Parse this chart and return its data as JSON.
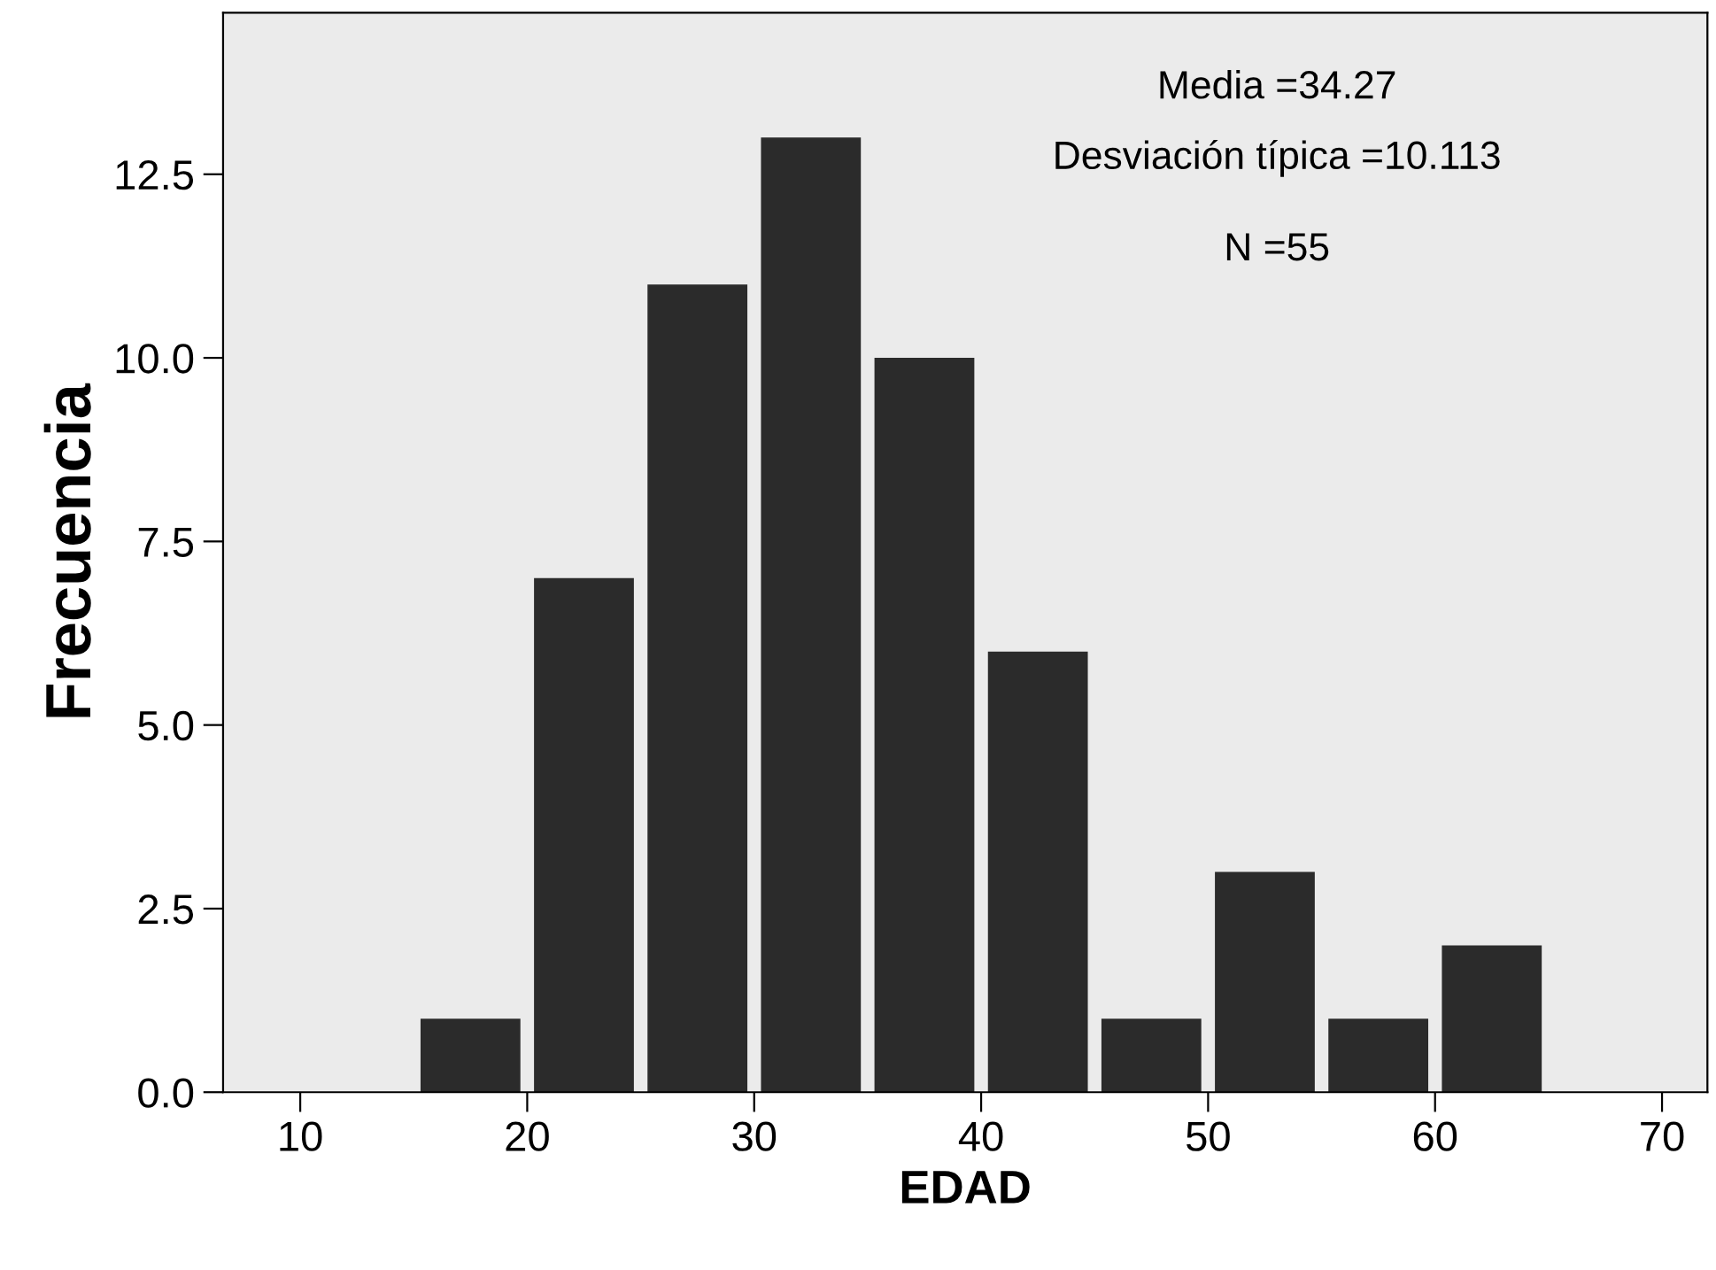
{
  "chart_data": {
    "type": "histogram",
    "xlabel": "EDAD",
    "ylabel": "Frecuencia",
    "bins": [
      15,
      20,
      25,
      30,
      35,
      40,
      45,
      50,
      55,
      60,
      65
    ],
    "values": [
      1,
      7,
      11,
      13,
      10,
      6,
      1,
      3,
      1,
      2
    ],
    "color": "#2b2b2b",
    "xlim": [
      6.6,
      72
    ],
    "xticks": [
      10,
      20,
      30,
      40,
      50,
      60,
      70
    ],
    "ylim": [
      0,
      14.7
    ],
    "yticks": [
      {
        "value": 0,
        "label": "0.0"
      },
      {
        "value": 2.5,
        "label": "2.5"
      },
      {
        "value": 5,
        "label": "5.0"
      },
      {
        "value": 7.5,
        "label": "7.5"
      },
      {
        "value": 10,
        "label": "10.0"
      },
      {
        "value": 12.5,
        "label": "12.5"
      }
    ],
    "grid": false,
    "annotations": [
      "Media =34.27",
      "Desviación típica =10.113",
      "N =55"
    ]
  }
}
